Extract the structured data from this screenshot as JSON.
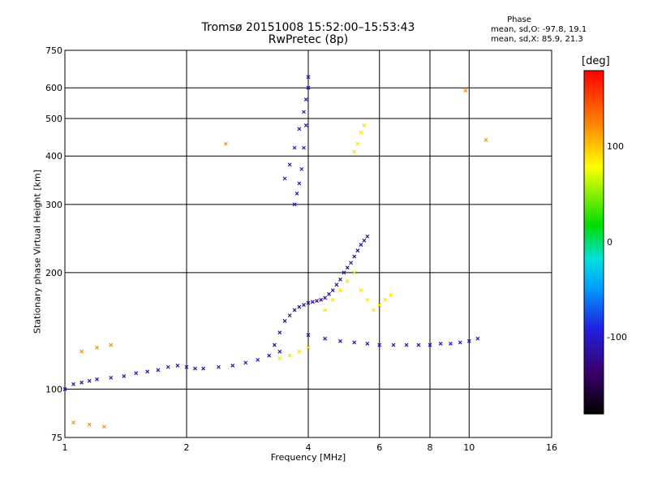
{
  "header": {
    "title_line1": "Tromsø 20151008 15:52:00–15:53:43",
    "title_line2": "RwPretec (8p)"
  },
  "phase_info": {
    "title": "Phase",
    "o_line": "mean, sd,O: -97.8, 19.1",
    "x_line": "mean, sd,X: 85.9, 21.3"
  },
  "colorbar": {
    "unit": "[deg]",
    "range": [
      -180,
      180
    ],
    "ticks": [
      {
        "value": 100,
        "label": "100"
      },
      {
        "value": 0,
        "label": "0"
      },
      {
        "value": -100,
        "label": "-100"
      }
    ]
  },
  "chart_data": {
    "type": "scatter",
    "xlabel": "Frequency [MHz]",
    "ylabel": "Stationary phase Virtual Height [km]",
    "xscale": "log",
    "yscale": "log",
    "xlim": [
      1,
      16
    ],
    "ylim": [
      75,
      750
    ],
    "xticks": [
      {
        "value": 1,
        "label": "1"
      },
      {
        "value": 2,
        "label": "2"
      },
      {
        "value": 4,
        "label": "4"
      },
      {
        "value": 6,
        "label": "6"
      },
      {
        "value": 8,
        "label": "8"
      },
      {
        "value": 10,
        "label": "10"
      },
      {
        "value": 16,
        "label": "16"
      }
    ],
    "yticks": [
      {
        "value": 75,
        "label": "75"
      },
      {
        "value": 100,
        "label": "100"
      },
      {
        "value": 200,
        "label": "200"
      },
      {
        "value": 300,
        "label": "300"
      },
      {
        "value": 400,
        "label": "400"
      },
      {
        "value": 500,
        "label": "500"
      },
      {
        "value": 600,
        "label": "600"
      },
      {
        "value": 750,
        "label": "750"
      }
    ],
    "grid": true,
    "color_by": "phase (deg)",
    "series": [
      {
        "trace": "low-frequency E/F trace",
        "phase": -110,
        "points": [
          [
            1.0,
            100
          ],
          [
            1.05,
            103
          ],
          [
            1.1,
            104
          ],
          [
            1.15,
            105
          ],
          [
            1.2,
            106
          ],
          [
            1.3,
            107
          ],
          [
            1.4,
            108
          ],
          [
            1.5,
            110
          ],
          [
            1.6,
            111
          ],
          [
            1.7,
            112
          ],
          [
            1.8,
            114
          ],
          [
            1.9,
            115
          ],
          [
            2.0,
            114
          ],
          [
            2.1,
            113
          ],
          [
            2.2,
            113
          ],
          [
            2.4,
            114
          ],
          [
            2.6,
            115
          ],
          [
            2.8,
            117
          ],
          [
            3.0,
            119
          ],
          [
            3.2,
            122
          ],
          [
            3.4,
            125
          ]
        ]
      },
      {
        "trace": "F trace cusp near 4 MHz",
        "phase": -120,
        "points": [
          [
            3.3,
            130
          ],
          [
            3.4,
            140
          ],
          [
            3.5,
            150
          ],
          [
            3.6,
            155
          ],
          [
            3.7,
            160
          ],
          [
            3.8,
            163
          ],
          [
            3.9,
            165
          ],
          [
            4.0,
            167
          ],
          [
            4.1,
            168
          ],
          [
            4.2,
            169
          ],
          [
            4.3,
            170
          ],
          [
            4.4,
            172
          ],
          [
            4.5,
            176
          ],
          [
            4.6,
            180
          ],
          [
            4.7,
            186
          ],
          [
            4.8,
            192
          ],
          [
            4.9,
            200
          ],
          [
            5.0,
            206
          ],
          [
            5.1,
            212
          ],
          [
            5.2,
            220
          ],
          [
            5.3,
            228
          ],
          [
            5.4,
            236
          ],
          [
            5.5,
            242
          ],
          [
            5.6,
            248
          ]
        ]
      },
      {
        "trace": "F trace high branch near 4 MHz",
        "phase": -100,
        "points": [
          [
            3.5,
            350
          ],
          [
            3.6,
            380
          ],
          [
            3.7,
            420
          ],
          [
            3.8,
            470
          ],
          [
            3.9,
            520
          ],
          [
            3.95,
            560
          ],
          [
            4.0,
            600
          ],
          [
            4.0,
            640
          ],
          [
            3.95,
            480
          ],
          [
            3.9,
            420
          ],
          [
            3.85,
            370
          ],
          [
            3.8,
            340
          ],
          [
            3.75,
            320
          ],
          [
            3.7,
            300
          ]
        ]
      },
      {
        "trace": "high-frequency tail",
        "phase": -105,
        "points": [
          [
            4.0,
            138
          ],
          [
            4.4,
            135
          ],
          [
            4.8,
            133
          ],
          [
            5.2,
            132
          ],
          [
            5.6,
            131
          ],
          [
            6.0,
            130
          ],
          [
            6.5,
            130
          ],
          [
            7.0,
            130
          ],
          [
            7.5,
            130
          ],
          [
            8.0,
            130
          ],
          [
            8.5,
            131
          ],
          [
            9.0,
            131
          ],
          [
            9.5,
            132
          ],
          [
            10.0,
            133
          ],
          [
            10.5,
            135
          ]
        ]
      },
      {
        "trace": "X mode scatter",
        "phase": 90,
        "points": [
          [
            3.4,
            120
          ],
          [
            3.6,
            122
          ],
          [
            3.8,
            125
          ],
          [
            4.0,
            128
          ],
          [
            4.4,
            160
          ],
          [
            4.6,
            170
          ],
          [
            4.8,
            180
          ],
          [
            5.0,
            190
          ],
          [
            5.2,
            200
          ],
          [
            5.4,
            180
          ],
          [
            5.6,
            170
          ],
          [
            5.8,
            160
          ],
          [
            6.0,
            165
          ],
          [
            6.2,
            170
          ],
          [
            6.4,
            175
          ],
          [
            5.3,
            430
          ],
          [
            5.4,
            460
          ],
          [
            5.5,
            480
          ],
          [
            5.2,
            410
          ]
        ]
      },
      {
        "trace": "sparse noise",
        "phase": 120,
        "points": [
          [
            1.1,
            125
          ],
          [
            1.2,
            128
          ],
          [
            1.3,
            130
          ],
          [
            1.05,
            82
          ],
          [
            1.15,
            81
          ],
          [
            1.25,
            80
          ],
          [
            2.5,
            430
          ],
          [
            9.8,
            590
          ],
          [
            11.0,
            440
          ]
        ]
      }
    ]
  }
}
